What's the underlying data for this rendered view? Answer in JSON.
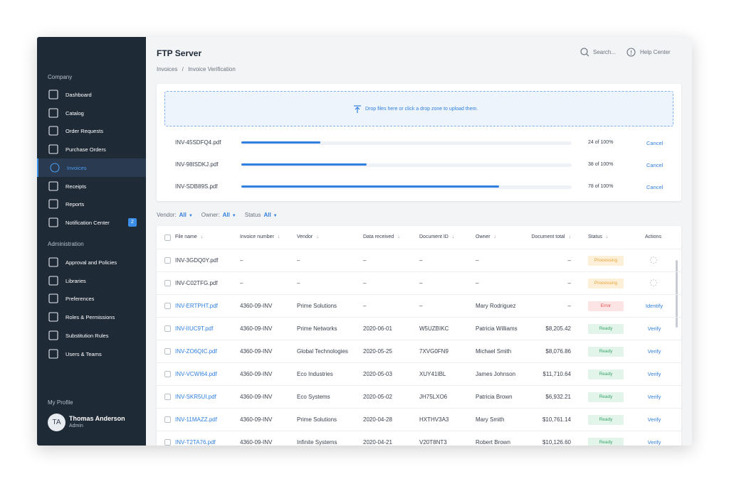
{
  "sidebar": {
    "company_label": "Company",
    "company_items": [
      {
        "label": "Dashboard"
      },
      {
        "label": "Catalog"
      },
      {
        "label": "Order Requests"
      },
      {
        "label": "Purchase Orders"
      },
      {
        "label": "Invoices",
        "active": true
      },
      {
        "label": "Receipts"
      },
      {
        "label": "Reports"
      },
      {
        "label": "Notification Center",
        "badge": "2"
      }
    ],
    "admin_label": "Administration",
    "admin_items": [
      {
        "label": "Approval and Policies"
      },
      {
        "label": "Libraries"
      },
      {
        "label": "Preferences"
      },
      {
        "label": "Roles & Permissions"
      },
      {
        "label": "Substitution Rules"
      },
      {
        "label": "Users & Teams"
      }
    ],
    "profile_label": "My Profile",
    "profile": {
      "initials": "TA",
      "name": "Thomas Anderson",
      "role": "Admin"
    }
  },
  "header": {
    "title": "FTP Server",
    "search": "Search...",
    "help": "Help Center",
    "breadcrumb": [
      "Invoices",
      "Invoice Verification"
    ],
    "breadcrumb_separator": "/"
  },
  "upload": {
    "dropzone": "Drop files here or click a drop zone to upload them.",
    "progress_max": 100,
    "files": [
      {
        "name": "INV-45SDFQ4.pdf",
        "progress": 24,
        "label": "24 of 100%",
        "action": "Cancel"
      },
      {
        "name": "INV-98ISDKJ.pdf",
        "progress": 38,
        "label": "38 of 100%",
        "action": "Cancel"
      },
      {
        "name": "INV-SDB89S.pdf",
        "progress": 78,
        "label": "78 of 100%",
        "action": "Cancel"
      }
    ]
  },
  "filters": [
    {
      "label": "Vendor:",
      "value": "All"
    },
    {
      "label": "Owner:",
      "value": "All"
    },
    {
      "label": "Status",
      "value": "All"
    }
  ],
  "table": {
    "columns": [
      "File name",
      "Invoice number",
      "Vendor",
      "Data received",
      "Document ID",
      "Owner",
      "Document total",
      "Status",
      "Actions"
    ],
    "rows": [
      {
        "cells": [
          "INV-3GDQ0Y.pdf",
          "–",
          "–",
          "–",
          "–",
          "–",
          "–"
        ],
        "status": {
          "label": "Processing",
          "color": "#e8a33a",
          "background": "#fdf0d8"
        }
      },
      {
        "cells": [
          "INV-C02TFG.pdf",
          "–",
          "–",
          "–",
          "–",
          "–",
          "–"
        ],
        "status": {
          "label": "Processing",
          "color": "#e8a33a",
          "background": "#fdf0d8"
        }
      },
      {
        "cells": [
          "INV-ERTPHT.pdf",
          "4360-09-INV",
          "Prime Solutions",
          "–",
          "–",
          "Mary Rodriguez",
          "–"
        ],
        "status": {
          "label": "Error",
          "color": "#e0504f",
          "background": "#fde4e4"
        },
        "action": "Identify"
      },
      {
        "cells": [
          "INV-IIUC9T.pdf",
          "4360-09-INV",
          "Prime Networks",
          "2020-06-01",
          "W5UZBIKC",
          "Patricia Williams",
          "$8,205.42"
        ],
        "status": {
          "label": "Ready",
          "color": "#3aa56b",
          "background": "#e3f4ea"
        },
        "action": "Verify"
      },
      {
        "cells": [
          "INV-ZO6QIC.pdf",
          "4360-09-INV",
          "Global Technologies",
          "2020-05-25",
          "7XVG0FN9",
          "Michael Smith",
          "$8,076.86"
        ],
        "status": {
          "label": "Ready",
          "color": "#3aa56b",
          "background": "#e3f4ea"
        },
        "action": "Verify"
      },
      {
        "cells": [
          "INV-VCWI64.pdf",
          "4360-09-INV",
          "Eco Industries",
          "2020-05-03",
          "XUY41IBL",
          "James Johnson",
          "$11,710.64"
        ],
        "status": {
          "label": "Ready",
          "color": "#3aa56b",
          "background": "#e3f4ea"
        },
        "action": "Verify"
      },
      {
        "cells": [
          "INV-SKR5UI.pdf",
          "4360-09-INV",
          "Eco Systems",
          "2020-05-02",
          "JH75LXO6",
          "Patricia Brown",
          "$6,932.21"
        ],
        "status": {
          "label": "Ready",
          "color": "#3aa56b",
          "background": "#e3f4ea"
        },
        "action": "Verify"
      },
      {
        "cells": [
          "INV-11MAZZ.pdf",
          "4360-09-INV",
          "Prime Solutions",
          "2020-04-28",
          "HXTHV3A3",
          "Mary Smith",
          "$10,761.14"
        ],
        "status": {
          "label": "Ready",
          "color": "#3aa56b",
          "background": "#e3f4ea"
        },
        "action": "Verify"
      },
      {
        "cells": [
          "INV-T2TA76.pdf",
          "4360-09-INV",
          "Infinite Systems",
          "2020-04-21",
          "V20T8NT3",
          "Robert Brown",
          "$10,126.60"
        ],
        "status": {
          "label": "Ready",
          "color": "#3aa56b",
          "background": "#e3f4ea"
        },
        "action": "Verify"
      }
    ]
  }
}
